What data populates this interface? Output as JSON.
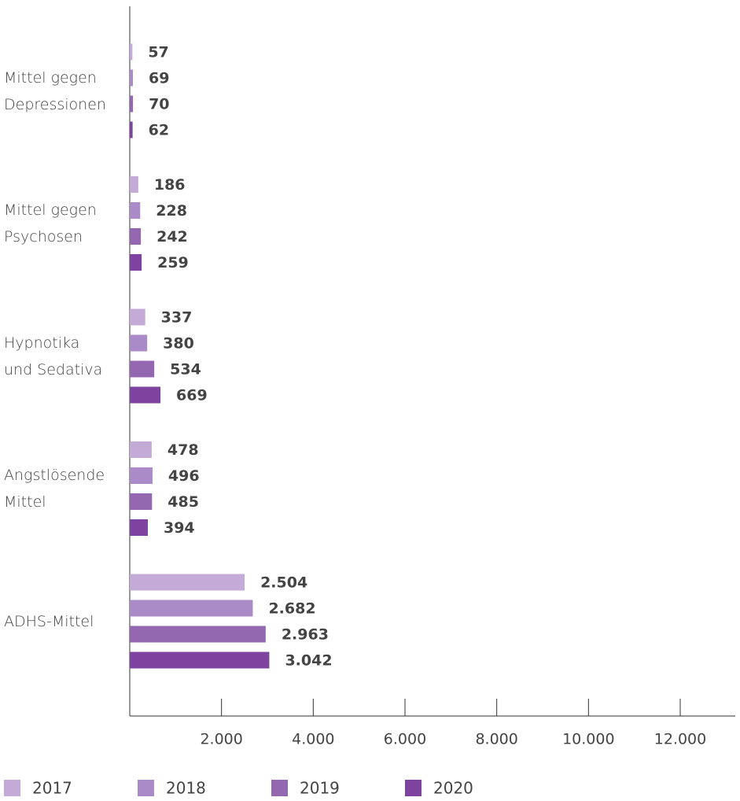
{
  "chart_data": {
    "type": "barh",
    "categories": [
      "Mittel gegen\nDepressionen",
      "Mittel gegen\nPsychosen",
      "Hypnotika\nund Sedativa",
      "Angstlösende\nMittel",
      "ADHS-Mittel"
    ],
    "series": [
      {
        "name": "2017",
        "color": "#c4aad6",
        "values": [
          57,
          186,
          337,
          478,
          2504
        ],
        "value_labels": [
          "57",
          "186",
          "337",
          "478",
          "2.504"
        ]
      },
      {
        "name": "2018",
        "color": "#aa8ac7",
        "values": [
          69,
          228,
          380,
          496,
          2682
        ],
        "value_labels": [
          "69",
          "228",
          "380",
          "496",
          "2.682"
        ]
      },
      {
        "name": "2019",
        "color": "#9467b1",
        "values": [
          70,
          242,
          534,
          485,
          2963
        ],
        "value_labels": [
          "70",
          "242",
          "534",
          "485",
          "2.963"
        ]
      },
      {
        "name": "2020",
        "color": "#7d439e",
        "values": [
          62,
          259,
          669,
          394,
          3042
        ],
        "value_labels": [
          "62",
          "259",
          "669",
          "394",
          "3.042"
        ]
      }
    ],
    "xlim": [
      0,
      13200
    ],
    "xticks": [
      {
        "value": 2000,
        "label": "2.000"
      },
      {
        "value": 4000,
        "label": "4.000"
      },
      {
        "value": 6000,
        "label": "6.000"
      },
      {
        "value": 8000,
        "label": "8.000"
      },
      {
        "value": 10000,
        "label": "10.000"
      },
      {
        "value": 12000,
        "label": "12.000"
      }
    ],
    "legend": "bottom-left"
  }
}
